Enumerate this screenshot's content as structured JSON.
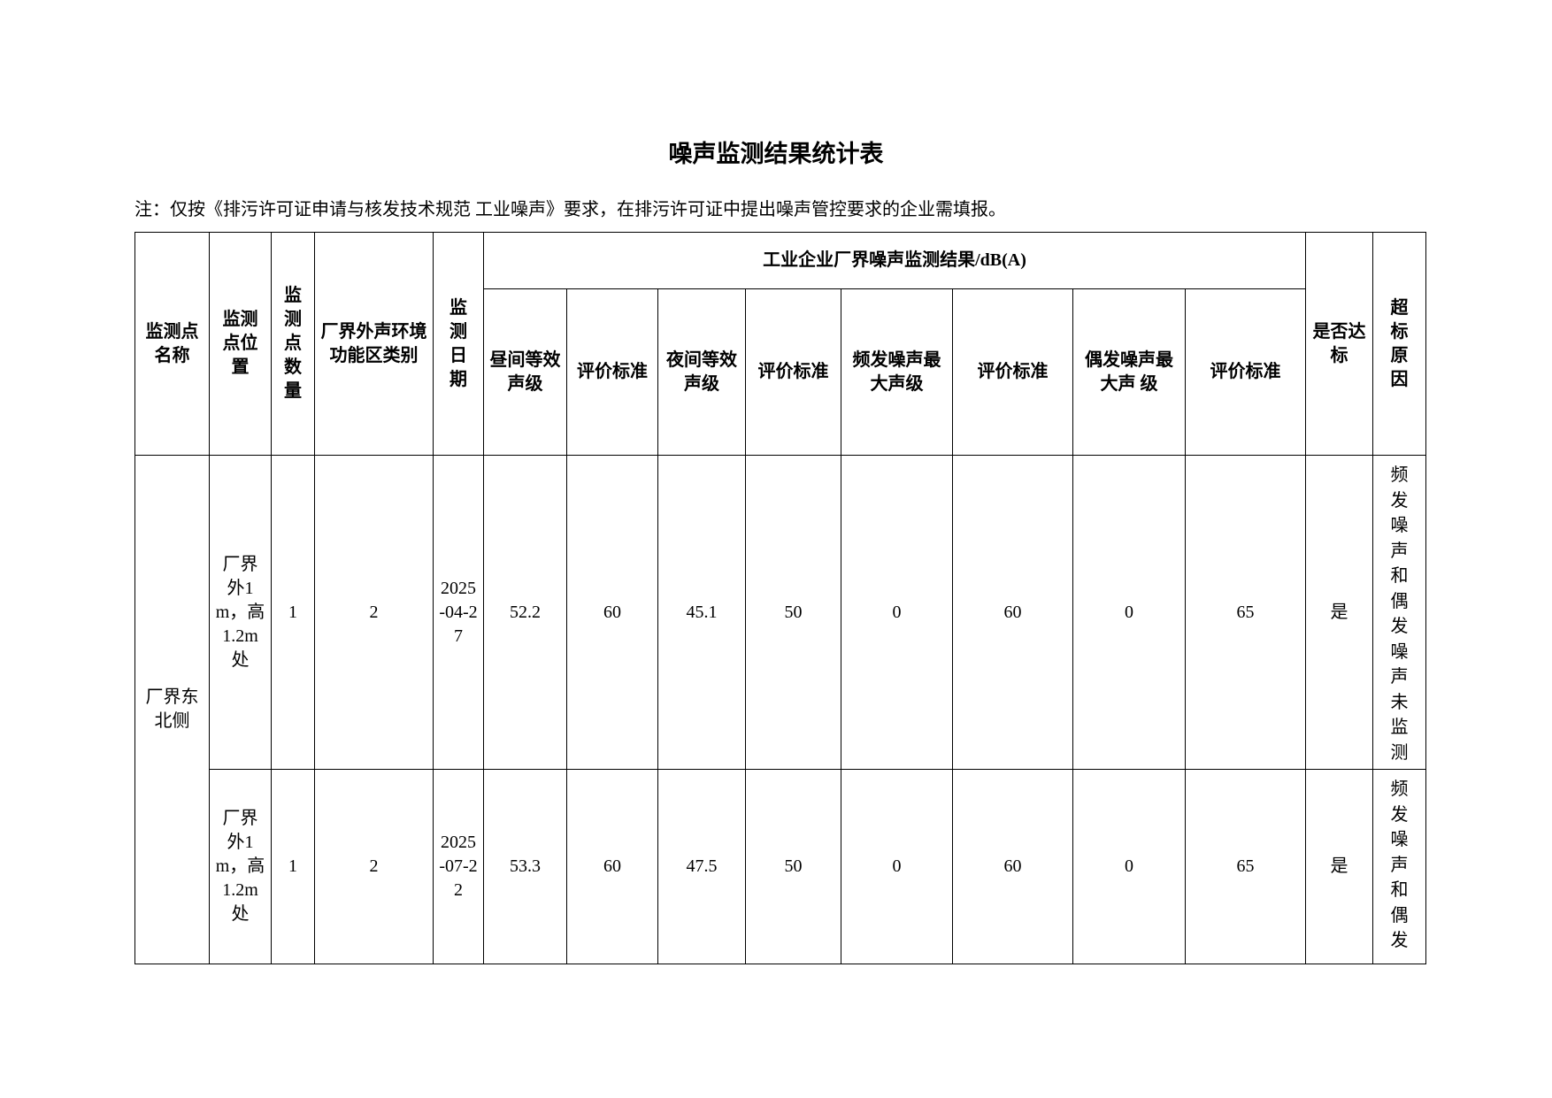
{
  "title": "噪声监测结果统计表",
  "note": "注：仅按《排污许可证申请与核发技术规范  工业噪声》要求，在排污许可证中提出噪声管控要求的企业需填报。",
  "headers": {
    "point_name": "监测点名称",
    "point_location": "监测点位置",
    "point_count": "监测点数量",
    "zone_category": "厂界外声环境功能区类别",
    "date": "监测日期",
    "group": "工业企业厂界噪声监测结果/dB(A)",
    "day_leq": "昼间等效声级",
    "day_std": "评价标准",
    "night_leq": "夜间等效声级",
    "night_std": "评价标准",
    "freq_max": "频发噪声最大声级",
    "freq_std": "评价标准",
    "occ_max": "偶发噪声最大声  级",
    "occ_std": "评价标准",
    "compliant": "是否达标",
    "reason": "超标原因"
  },
  "group_name": "厂界东北侧",
  "rows": [
    {
      "location": "厂界外1m，高1.2m处",
      "count": "1",
      "zone": "2",
      "date": "2025-04-27",
      "day_leq": "52.2",
      "day_std": "60",
      "night_leq": "45.1",
      "night_std": "50",
      "freq_max": "0",
      "freq_std": "60",
      "occ_max": "0",
      "occ_std": "65",
      "compliant": "是",
      "reason": "频发噪声和偶发噪声未监测"
    },
    {
      "location": "厂界外1m，高1.2m处",
      "count": "1",
      "zone": "2",
      "date": "2025-07-22",
      "day_leq": "53.3",
      "day_std": "60",
      "night_leq": "47.5",
      "night_std": "50",
      "freq_max": "0",
      "freq_std": "60",
      "occ_max": "0",
      "occ_std": "65",
      "compliant": "是",
      "reason": "频发噪声和偶发"
    }
  ]
}
